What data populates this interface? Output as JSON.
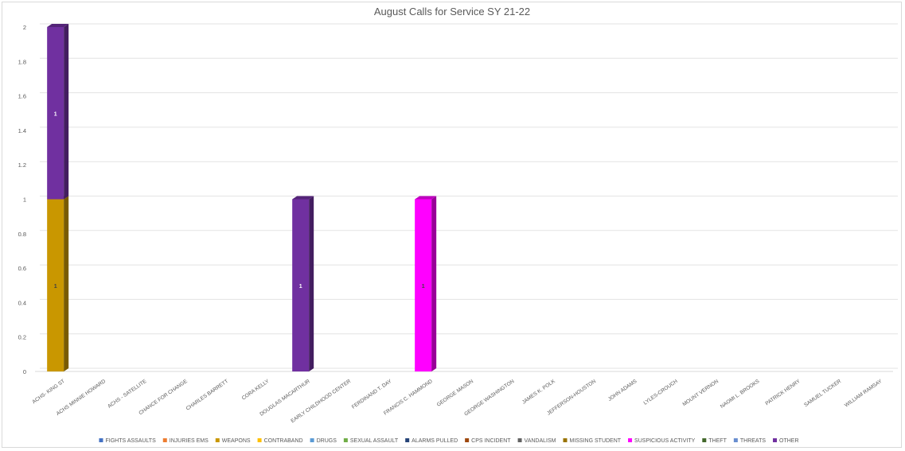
{
  "chart_data": {
    "type": "bar",
    "stacked": true,
    "title": "August Calls for Service SY 21-22",
    "xlabel": "",
    "ylabel": "",
    "ylim": [
      0,
      2
    ],
    "yticks": [
      "0",
      "0.2",
      "0.4",
      "0.6",
      "0.8",
      "1",
      "1.2",
      "1.4",
      "1.6",
      "1.8",
      "2"
    ],
    "grid": true,
    "legend_position": "bottom",
    "categories": [
      "ACHS- KING ST",
      "ACHS MINNIE HOWARD",
      "ACHS - SATELLITE",
      "CHANCE FOR CHANGE",
      "CHARLES BARRETT",
      "CORA KELLY",
      "DOUGLAS MACARTHUR",
      "EARLY CHILDHOOD CENTER",
      "FERDINAND T. DAY",
      "FRANCIS C. HAMMOND",
      "GEORGE MASON",
      "GEORGE WASHINGTON",
      "JAMES K. POLK",
      "JEFFERSON-HOUSTON",
      "JOHN ADAMS",
      "LYLES-CROUCH",
      "MOUNT VERNON",
      "NAOMI L. BROOKS",
      "PATRICK HENRY",
      "SAMUEL TUCKER",
      "WILLIAM RAMSAY"
    ],
    "series": [
      {
        "name": "FIGHTS ASSAULTS",
        "color": "#4472c4",
        "values": [
          0,
          0,
          0,
          0,
          0,
          0,
          0,
          0,
          0,
          0,
          0,
          0,
          0,
          0,
          0,
          0,
          0,
          0,
          0,
          0,
          0
        ]
      },
      {
        "name": "INJURIES EMS",
        "color": "#ed7d31",
        "values": [
          0,
          0,
          0,
          0,
          0,
          0,
          0,
          0,
          0,
          0,
          0,
          0,
          0,
          0,
          0,
          0,
          0,
          0,
          0,
          0,
          0
        ]
      },
      {
        "name": "WEAPONS",
        "color": "#c99700",
        "values": [
          1,
          0,
          0,
          0,
          0,
          0,
          0,
          0,
          0,
          0,
          0,
          0,
          0,
          0,
          0,
          0,
          0,
          0,
          0,
          0,
          0
        ]
      },
      {
        "name": "CONTRABAND",
        "color": "#ffc000",
        "values": [
          0,
          0,
          0,
          0,
          0,
          0,
          0,
          0,
          0,
          0,
          0,
          0,
          0,
          0,
          0,
          0,
          0,
          0,
          0,
          0,
          0
        ]
      },
      {
        "name": "DRUGS",
        "color": "#5b9bd5",
        "values": [
          0,
          0,
          0,
          0,
          0,
          0,
          0,
          0,
          0,
          0,
          0,
          0,
          0,
          0,
          0,
          0,
          0,
          0,
          0,
          0,
          0
        ]
      },
      {
        "name": "SEXUAL ASSAULT",
        "color": "#70ad47",
        "values": [
          0,
          0,
          0,
          0,
          0,
          0,
          0,
          0,
          0,
          0,
          0,
          0,
          0,
          0,
          0,
          0,
          0,
          0,
          0,
          0,
          0
        ]
      },
      {
        "name": "ALARMS PULLED",
        "color": "#264478",
        "values": [
          0,
          0,
          0,
          0,
          0,
          0,
          0,
          0,
          0,
          0,
          0,
          0,
          0,
          0,
          0,
          0,
          0,
          0,
          0,
          0,
          0
        ]
      },
      {
        "name": "CPS INCIDENT",
        "color": "#9e480e",
        "values": [
          0,
          0,
          0,
          0,
          0,
          0,
          0,
          0,
          0,
          0,
          0,
          0,
          0,
          0,
          0,
          0,
          0,
          0,
          0,
          0,
          0
        ]
      },
      {
        "name": "VANDALISM",
        "color": "#636363",
        "values": [
          0,
          0,
          0,
          0,
          0,
          0,
          0,
          0,
          0,
          0,
          0,
          0,
          0,
          0,
          0,
          0,
          0,
          0,
          0,
          0,
          0
        ]
      },
      {
        "name": "MISSING STUDENT",
        "color": "#997300",
        "values": [
          0,
          0,
          0,
          0,
          0,
          0,
          0,
          0,
          0,
          0,
          0,
          0,
          0,
          0,
          0,
          0,
          0,
          0,
          0,
          0,
          0
        ]
      },
      {
        "name": "SUSPICIOUS ACTIVITY",
        "color": "#ff00ff",
        "values": [
          0,
          0,
          0,
          0,
          0,
          0,
          0,
          0,
          0,
          1,
          0,
          0,
          0,
          0,
          0,
          0,
          0,
          0,
          0,
          0,
          0
        ]
      },
      {
        "name": "THEFT",
        "color": "#43682b",
        "values": [
          0,
          0,
          0,
          0,
          0,
          0,
          0,
          0,
          0,
          0,
          0,
          0,
          0,
          0,
          0,
          0,
          0,
          0,
          0,
          0,
          0
        ]
      },
      {
        "name": "THREATS",
        "color": "#698ed0",
        "values": [
          0,
          0,
          0,
          0,
          0,
          0,
          0,
          0,
          0,
          0,
          0,
          0,
          0,
          0,
          0,
          0,
          0,
          0,
          0,
          0,
          0
        ]
      },
      {
        "name": "OTHER",
        "color": "#7030a0",
        "values": [
          1,
          0,
          0,
          0,
          0,
          0,
          1,
          0,
          0,
          0,
          0,
          0,
          0,
          0,
          0,
          0,
          0,
          0,
          0,
          0,
          0
        ]
      }
    ]
  }
}
